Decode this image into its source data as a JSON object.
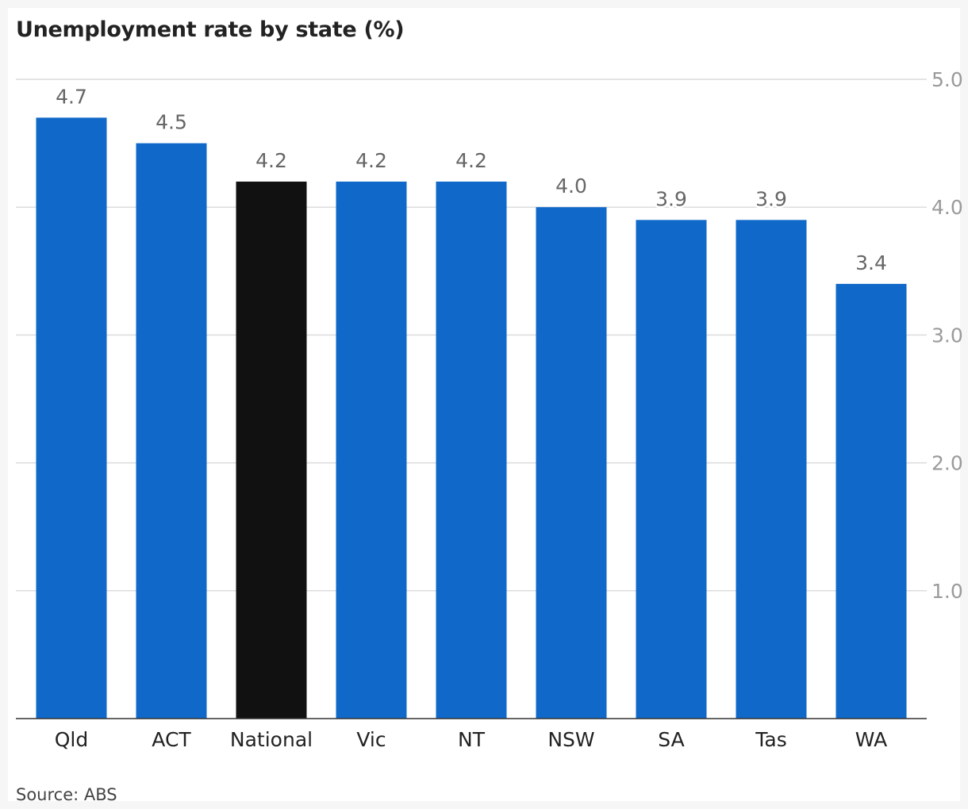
{
  "chart_data": {
    "type": "bar",
    "title": "Unemployment rate by state (%)",
    "source": "Source: ABS",
    "categories": [
      "Qld",
      "ACT",
      "National",
      "Vic",
      "NT",
      "NSW",
      "SA",
      "Tas",
      "WA"
    ],
    "values": [
      4.7,
      4.5,
      4.2,
      4.2,
      4.2,
      4.0,
      3.9,
      3.9,
      3.4
    ],
    "data_labels": [
      "4.7",
      "4.5",
      "4.2",
      "4.2",
      "4.2",
      "4.0",
      "3.9",
      "3.9",
      "3.4"
    ],
    "ylim": [
      0,
      5
    ],
    "y_ticks": [
      1.0,
      2.0,
      3.0,
      4.0,
      5.0
    ],
    "y_tick_labels": [
      "1.0",
      "2.0",
      "3.0",
      "4.0",
      "5.0"
    ],
    "y_axis_position": "right",
    "grid": true,
    "colors": {
      "bar": "#1069c9",
      "highlight": "#111111",
      "highlight_category": "National"
    }
  }
}
